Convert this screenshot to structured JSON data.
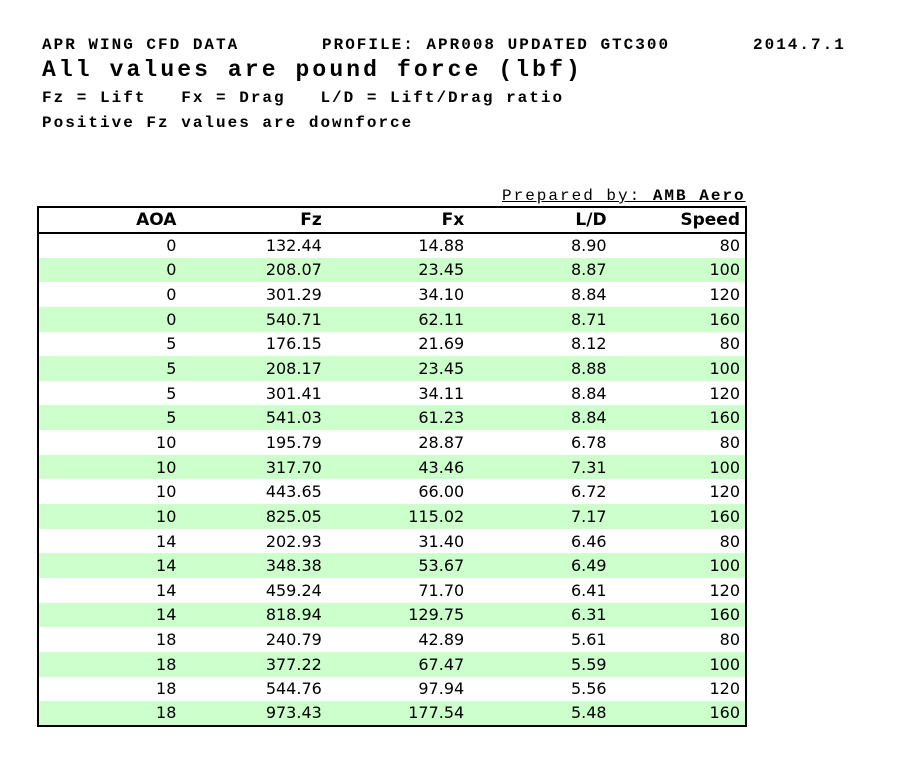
{
  "header": {
    "title": "APR WING CFD DATA",
    "profile": "PROFILE: APR008 UPDATED GTC300",
    "date": "2014.7.1",
    "subtitle": "All values are pound force (lbf)",
    "legend": "Fz = Lift   Fx = Drag   L/D = Lift/Drag ratio",
    "note": "Positive Fz values are downforce"
  },
  "prepared_by": {
    "label": "Prepared by: ",
    "value": "AMB Aero"
  },
  "table": {
    "columns": [
      "AOA",
      "Fz",
      "Fx",
      "L/D",
      "Speed"
    ],
    "rows": [
      [
        "0",
        "132.44",
        "14.88",
        "8.90",
        "80"
      ],
      [
        "0",
        "208.07",
        "23.45",
        "8.87",
        "100"
      ],
      [
        "0",
        "301.29",
        "34.10",
        "8.84",
        "120"
      ],
      [
        "0",
        "540.71",
        "62.11",
        "8.71",
        "160"
      ],
      [
        "5",
        "176.15",
        "21.69",
        "8.12",
        "80"
      ],
      [
        "5",
        "208.17",
        "23.45",
        "8.88",
        "100"
      ],
      [
        "5",
        "301.41",
        "34.11",
        "8.84",
        "120"
      ],
      [
        "5",
        "541.03",
        "61.23",
        "8.84",
        "160"
      ],
      [
        "10",
        "195.79",
        "28.87",
        "6.78",
        "80"
      ],
      [
        "10",
        "317.70",
        "43.46",
        "7.31",
        "100"
      ],
      [
        "10",
        "443.65",
        "66.00",
        "6.72",
        "120"
      ],
      [
        "10",
        "825.05",
        "115.02",
        "7.17",
        "160"
      ],
      [
        "14",
        "202.93",
        "31.40",
        "6.46",
        "80"
      ],
      [
        "14",
        "348.38",
        "53.67",
        "6.49",
        "100"
      ],
      [
        "14",
        "459.24",
        "71.70",
        "6.41",
        "120"
      ],
      [
        "14",
        "818.94",
        "129.75",
        "6.31",
        "160"
      ],
      [
        "18",
        "240.79",
        "42.89",
        "5.61",
        "80"
      ],
      [
        "18",
        "377.22",
        "67.47",
        "5.59",
        "100"
      ],
      [
        "18",
        "544.76",
        "97.94",
        "5.56",
        "120"
      ],
      [
        "18",
        "973.43",
        "177.54",
        "5.48",
        "160"
      ]
    ],
    "row_alt_color": "#ccffcc",
    "border_color": "#000000",
    "text_color": "#000000"
  }
}
